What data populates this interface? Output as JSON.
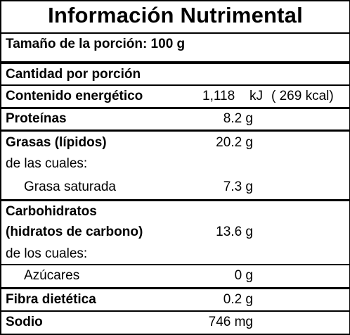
{
  "title": "Información Nutrimental",
  "serving": "Tamaño de la porción: 100 g",
  "per_serving": "Cantidad por porción",
  "energy": {
    "label": "Contenido energético",
    "kj_value": "1,118",
    "kj_unit": "kJ",
    "kcal": "( 269 kcal)"
  },
  "rows": {
    "protein": {
      "label": "Proteínas",
      "value": "8.2 g"
    },
    "fat": {
      "label": "Grasas (lípidos)",
      "value": "20.2 g"
    },
    "fat_of_which": {
      "label": "de las cuales:"
    },
    "sat_fat": {
      "label": "Grasa saturada",
      "value": "7.3 g"
    },
    "carbs": {
      "label": "Carbohidratos",
      "label2": "(hidratos de carbono)",
      "value": "13.6 g"
    },
    "carbs_of_which": {
      "label": "de los cuales:"
    },
    "sugars": {
      "label": "Azúcares",
      "value": "0 g"
    },
    "fiber": {
      "label": "Fibra dietética",
      "value": "0.2 g"
    },
    "sodium": {
      "label": "Sodio",
      "value": "746 mg"
    }
  }
}
